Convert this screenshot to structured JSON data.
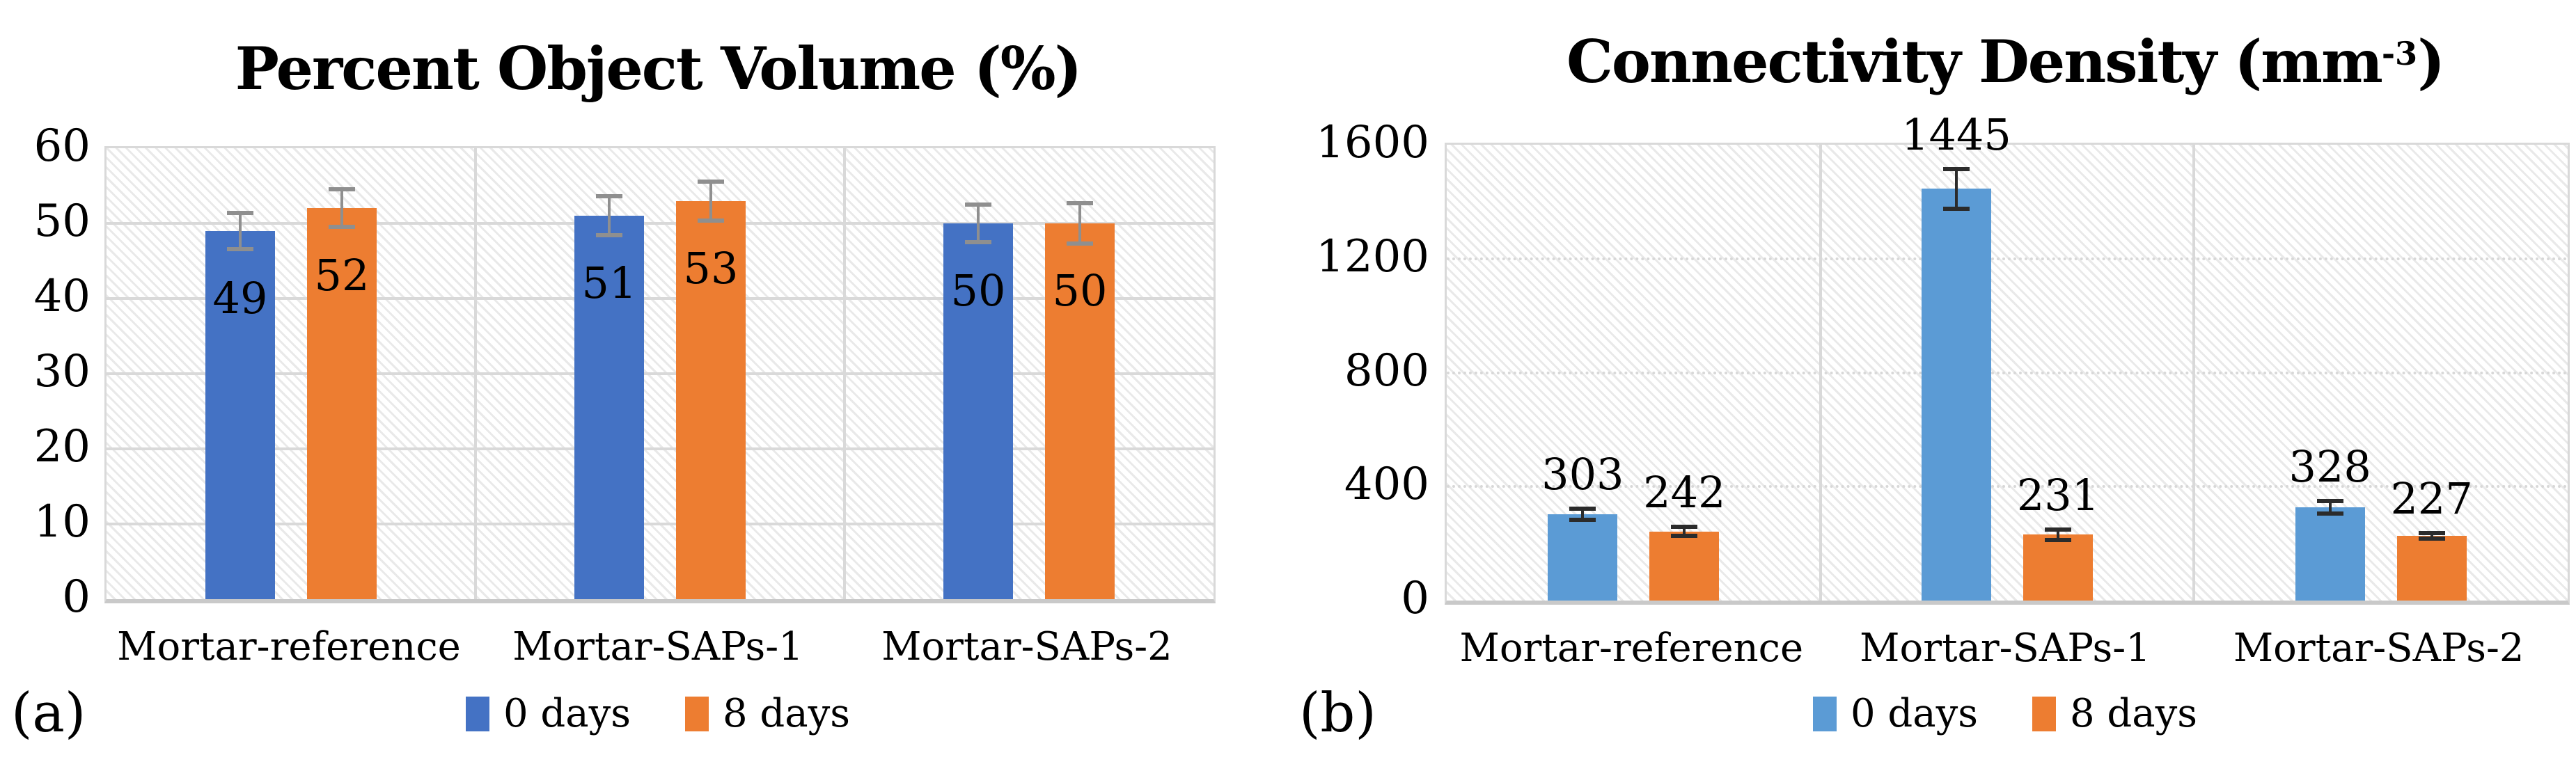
{
  "figure": {
    "panels": [
      {
        "letter": "(a)"
      },
      {
        "letter": "(b)"
      }
    ]
  },
  "chart_data": [
    {
      "type": "bar",
      "title": "Percent Object Volume (%)",
      "title_prefix": "Percent Object Volume (%)",
      "title_sup": "",
      "title_suffix": "",
      "categories": [
        "Mortar-reference",
        "Mortar-SAPs-1",
        "Mortar-SAPs-2"
      ],
      "series": [
        {
          "name": "0 days",
          "color": "#4472C4",
          "values": [
            49,
            51,
            50
          ],
          "errors": [
            2.4,
            2.6,
            2.5
          ]
        },
        {
          "name": "8 days",
          "color": "#ED7D31",
          "values": [
            52,
            53,
            50
          ],
          "errors": [
            2.5,
            2.6,
            2.7
          ]
        }
      ],
      "ylim": [
        0,
        60
      ],
      "yticks": [
        0,
        10,
        20,
        30,
        40,
        50,
        60
      ],
      "label_position": "inside",
      "gridline_style": "solid",
      "error_bar_color": "#8f8f8f",
      "legend_position": "bottom",
      "grid": true
    },
    {
      "type": "bar",
      "title": "Connectivity Density (mm-3)",
      "title_prefix": "Connectivity Density (mm",
      "title_sup": "-3",
      "title_suffix": ")",
      "categories": [
        "Mortar-reference",
        "Mortar-SAPs-1",
        "Mortar-SAPs-2"
      ],
      "series": [
        {
          "name": "0 days",
          "color": "#5B9BD5",
          "values": [
            303,
            1445,
            328
          ],
          "errors": [
            20,
            70,
            22
          ]
        },
        {
          "name": "8 days",
          "color": "#ED7D31",
          "values": [
            242,
            231,
            227
          ],
          "errors": [
            16,
            18,
            10
          ]
        }
      ],
      "ylim": [
        0,
        1600
      ],
      "yticks": [
        0,
        400,
        800,
        1200,
        1600
      ],
      "label_position": "above",
      "gridline_style": "dotted",
      "error_bar_color": "#2b2b2b",
      "legend_position": "bottom",
      "grid": true
    }
  ]
}
